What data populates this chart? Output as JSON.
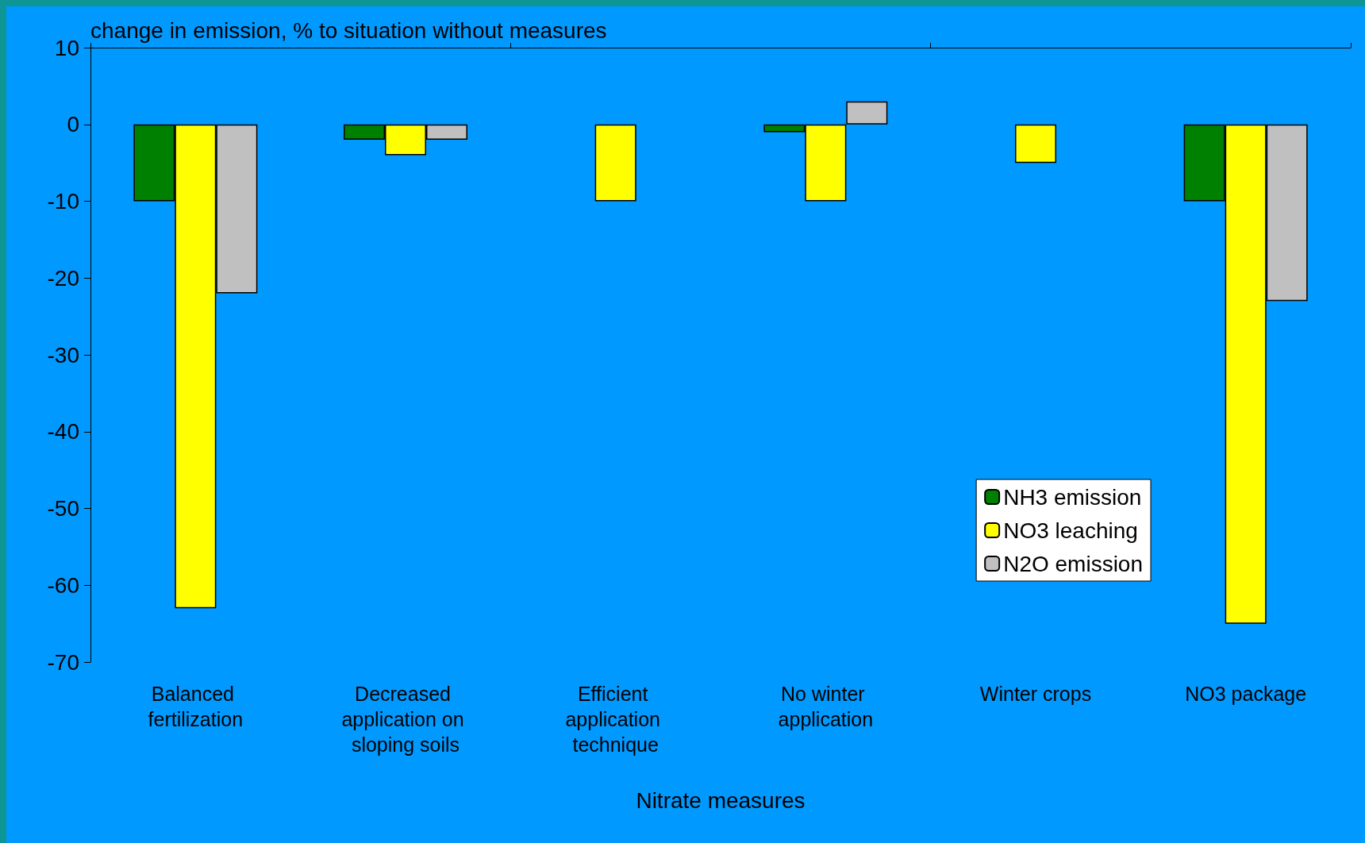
{
  "chart_data": {
    "type": "bar",
    "ylabel": "change in emission, % to situation without measures",
    "xlabel": "Nitrate measures",
    "categories": [
      "Balanced fertilization",
      "Decreased application on sloping soils",
      "Efficient application technique",
      "No winter application",
      "Winter crops",
      "NO3 package"
    ],
    "series": [
      {
        "name": "NH3 emission",
        "color": "#008000",
        "values": [
          -10,
          -2,
          null,
          -1,
          null,
          -10
        ]
      },
      {
        "name": "NO3 leaching",
        "color": "#ffff00",
        "values": [
          -63,
          -4,
          -10,
          -10,
          -5,
          -65
        ]
      },
      {
        "name": "N2O emission",
        "color": "#c0c0c0",
        "values": [
          -22,
          -2,
          null,
          3,
          null,
          -23
        ]
      }
    ],
    "ylim": [
      -70,
      10
    ],
    "yticks": [
      -70,
      -60,
      -50,
      -40,
      -30,
      -20,
      -10,
      0,
      10
    ],
    "grid": false,
    "legend": "bottom right"
  }
}
